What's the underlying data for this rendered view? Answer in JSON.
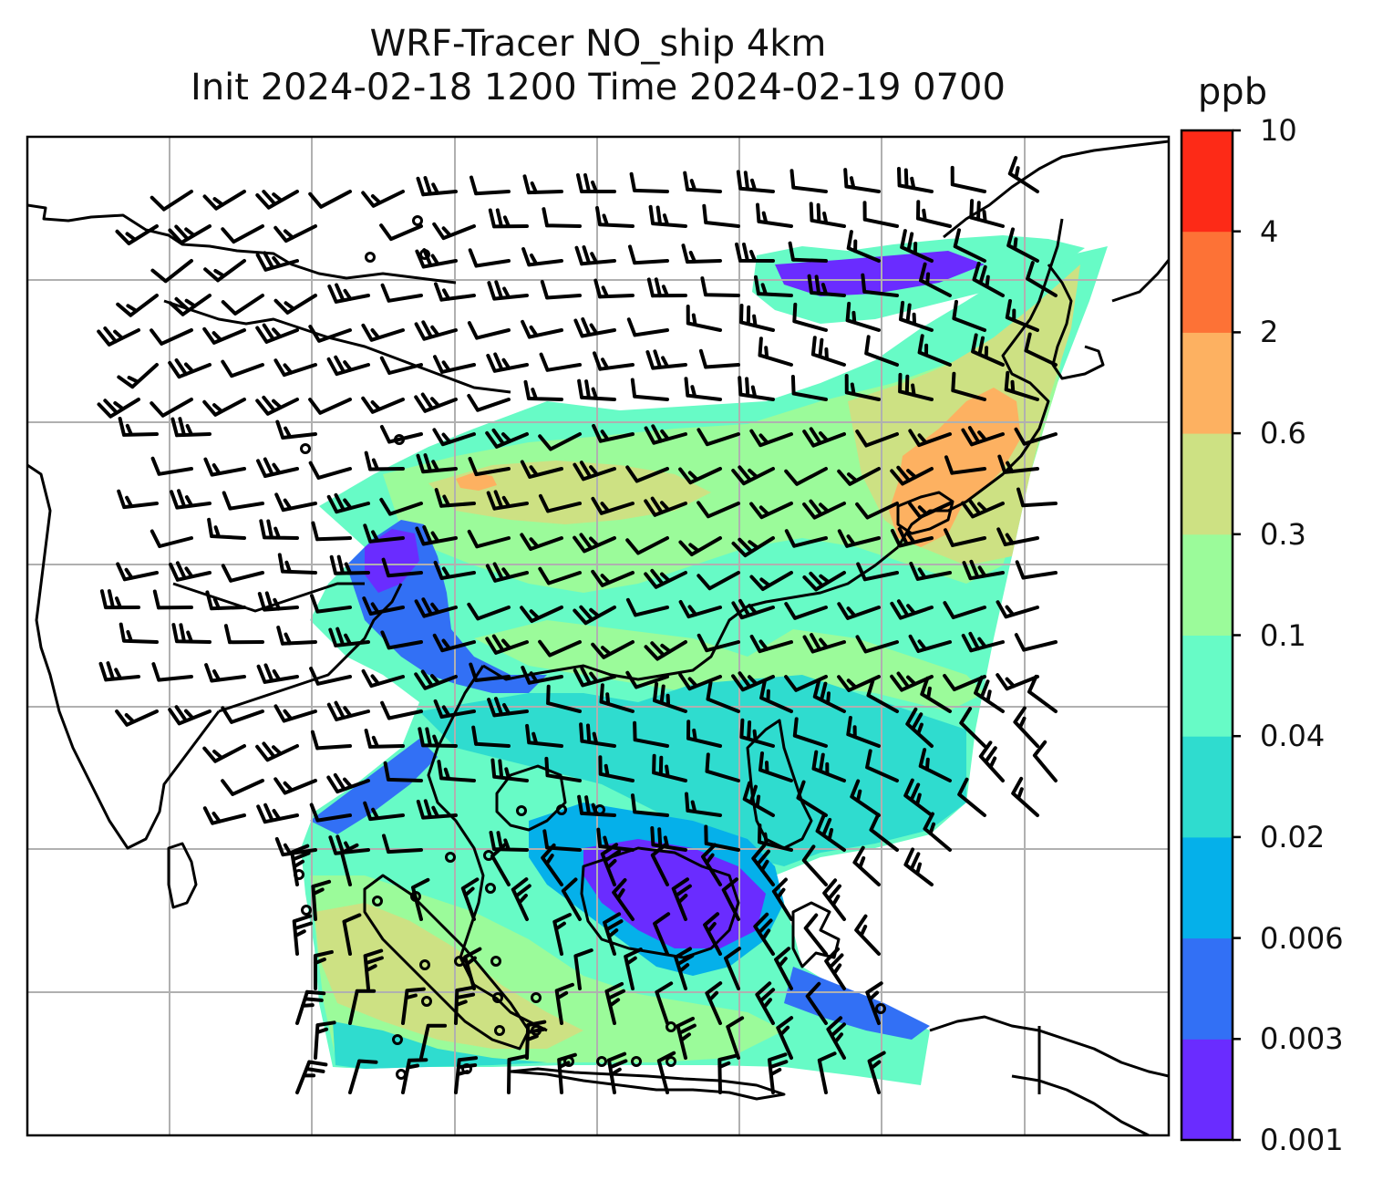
{
  "title": {
    "line1": "WRF-Tracer NO_ship 4km",
    "line2": "Init 2024-02-18 1200 Time 2024-02-19 0700"
  },
  "colorbar": {
    "units": "ppb",
    "levels": [
      "0.001",
      "0.003",
      "0.006",
      "0.02",
      "0.04",
      "0.1",
      "0.3",
      "0.6",
      "2",
      "4",
      "10"
    ],
    "colors": [
      "#6a2cff",
      "#3270f5",
      "#05b0ea",
      "#2fdccf",
      "#67fbc6",
      "#9bfb9a",
      "#cde183",
      "#fdb161",
      "#fd7236",
      "#fd2a17"
    ]
  },
  "map": {
    "gridlines": true,
    "grid_color": "#b0b0b0",
    "coastline_color": "#000000",
    "wind_barb_color": "#000000"
  }
}
